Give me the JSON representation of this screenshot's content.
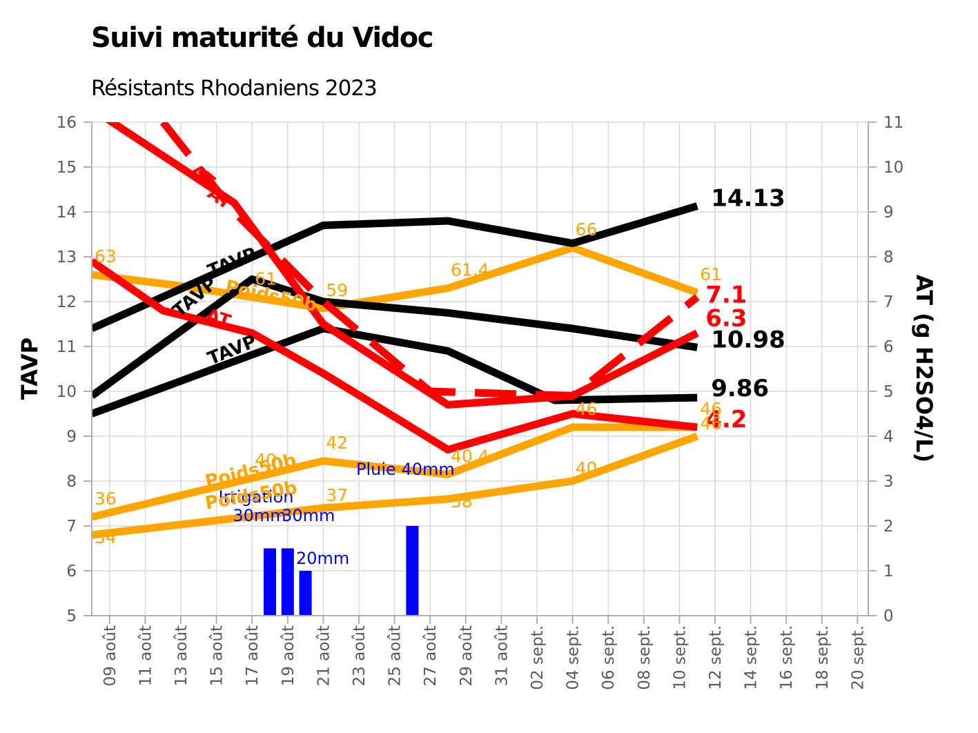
{
  "title": "Suivi maturité du Vidoc",
  "subtitle": "Résistants Rhodaniens 2023",
  "chart_data": {
    "type": "line",
    "xlabel": "",
    "ylabel_left": "TAVP",
    "ylabel_right": "AT (g H2SO4/L)",
    "ylim_left": [
      5,
      16
    ],
    "ylim_right": [
      0,
      11
    ],
    "grid": true,
    "x_ticks": [
      "09 août",
      "11 août",
      "13 août",
      "15 août",
      "17 août",
      "19 août",
      "21 août",
      "23 août",
      "25 août",
      "27 août",
      "29 août",
      "31 août",
      "02 sept.",
      "04 sept.",
      "06 sept.",
      "08 sept.",
      "10 sept.",
      "12 sept.",
      "14 sept.",
      "16 sept.",
      "18 sept.",
      "20 sept."
    ],
    "y_ticks_left": [
      "5",
      "6",
      "7",
      "8",
      "9",
      "10",
      "11",
      "12",
      "13",
      "14",
      "15",
      "16"
    ],
    "y_ticks_right": [
      "0",
      "1",
      "2",
      "3",
      "4",
      "5",
      "6",
      "7",
      "8",
      "9",
      "10",
      "11"
    ],
    "colors": {
      "tavp": "#000000",
      "at": "#ff0000",
      "poids": "#ffa500",
      "water": "#0000ff"
    },
    "series": [
      {
        "group": "tavp",
        "axis": "left",
        "points": [
          [
            "2023-08-08",
            11.4
          ],
          [
            "2023-08-21",
            13.7
          ],
          [
            "2023-08-28",
            13.8
          ],
          [
            "2023-09-04",
            13.3
          ],
          [
            "2023-09-11",
            14.13
          ]
        ],
        "end_label": "14.13",
        "inline_label": "TAVP"
      },
      {
        "group": "tavp",
        "axis": "left",
        "points": [
          [
            "2023-08-08",
            9.9
          ],
          [
            "2023-08-17",
            12.5
          ],
          [
            "2023-08-21",
            12.0
          ],
          [
            "2023-08-28",
            11.75
          ],
          [
            "2023-09-04",
            11.4
          ],
          [
            "2023-09-11",
            10.98
          ]
        ],
        "end_label": "10.98",
        "inline_label": "TAVP"
      },
      {
        "group": "tavp",
        "axis": "left",
        "points": [
          [
            "2023-08-08",
            9.5
          ],
          [
            "2023-08-21",
            11.4
          ],
          [
            "2023-08-28",
            10.9
          ],
          [
            "2023-09-03",
            9.8
          ],
          [
            "2023-09-11",
            9.86
          ]
        ],
        "end_label": "9.86",
        "inline_label": "TAVP"
      },
      {
        "group": "at",
        "axis": "right",
        "dashed": true,
        "points": [
          [
            "2023-08-12",
            11.0
          ],
          [
            "2023-08-16",
            9.0
          ],
          [
            "2023-08-21",
            7.0
          ],
          [
            "2023-08-27",
            5.0
          ],
          [
            "2023-09-04",
            4.9
          ],
          [
            "2023-09-11",
            7.1
          ]
        ],
        "end_label": "7.1",
        "inline_label": "AT"
      },
      {
        "group": "at",
        "axis": "right",
        "points": [
          [
            "2023-08-08",
            11.3
          ],
          [
            "2023-08-16",
            9.2
          ],
          [
            "2023-08-21",
            6.5
          ],
          [
            "2023-08-28",
            4.7
          ],
          [
            "2023-09-04",
            4.9
          ],
          [
            "2023-09-11",
            6.3
          ]
        ],
        "end_label": "6.3",
        "inline_label": "AT"
      },
      {
        "group": "at",
        "axis": "right",
        "points": [
          [
            "2023-08-08",
            7.9
          ],
          [
            "2023-08-12",
            6.8
          ],
          [
            "2023-08-17",
            6.3
          ],
          [
            "2023-08-21",
            5.4
          ],
          [
            "2023-08-28",
            3.7
          ],
          [
            "2023-09-04",
            4.5
          ],
          [
            "2023-09-11",
            4.2
          ]
        ],
        "end_label": "4.2",
        "inline_label": "AT"
      },
      {
        "group": "poids",
        "axis": "left",
        "points": [
          [
            "2023-08-08",
            12.6
          ],
          [
            "2023-08-13",
            12.35
          ],
          [
            "2023-08-21",
            11.85
          ],
          [
            "2023-08-28",
            12.3
          ],
          [
            "2023-09-04",
            13.2
          ],
          [
            "2023-09-11",
            12.2
          ]
        ],
        "point_labels": [
          [
            "2023-08-08",
            "63"
          ],
          [
            "2023-08-17",
            "61"
          ],
          [
            "2023-08-21",
            "59"
          ],
          [
            "2023-08-28",
            "61.4"
          ],
          [
            "2023-09-04",
            "66"
          ],
          [
            "2023-09-11",
            "61"
          ]
        ],
        "inline_label": "Poids50b"
      },
      {
        "group": "poids",
        "axis": "left",
        "points": [
          [
            "2023-08-08",
            7.2
          ],
          [
            "2023-08-21",
            8.45
          ],
          [
            "2023-08-28",
            8.15
          ],
          [
            "2023-09-04",
            9.2
          ],
          [
            "2023-09-11",
            9.2
          ]
        ],
        "point_labels": [
          [
            "2023-08-08",
            "36"
          ],
          [
            "2023-08-17",
            "40"
          ],
          [
            "2023-08-21",
            "42"
          ],
          [
            "2023-08-28",
            "40.4"
          ],
          [
            "2023-09-04",
            "46"
          ],
          [
            "2023-09-11",
            "46"
          ]
        ],
        "inline_label": "Poids50b"
      },
      {
        "group": "poids",
        "axis": "left",
        "points": [
          [
            "2023-08-08",
            6.8
          ],
          [
            "2023-08-21",
            7.4
          ],
          [
            "2023-08-28",
            7.6
          ],
          [
            "2023-09-04",
            8.0
          ],
          [
            "2023-09-11",
            9.0
          ]
        ],
        "point_labels": [
          [
            "2023-08-08",
            "34"
          ],
          [
            "2023-08-21",
            "37"
          ],
          [
            "2023-08-28",
            "38"
          ],
          [
            "2023-09-04",
            "40"
          ],
          [
            "2023-09-11",
            "46"
          ]
        ],
        "inline_label": "Poids50b"
      }
    ],
    "water_bars": [
      {
        "date": "2023-08-18",
        "value": 30,
        "label": "Irrigation"
      },
      {
        "date": "2023-08-19",
        "value": 30,
        "label": "30mm"
      },
      {
        "date": "2023-08-20",
        "value": 20,
        "label": "20mm"
      },
      {
        "date": "2023-08-26",
        "value": 40,
        "label": "Pluie 40mm"
      }
    ],
    "water_extra_labels": [
      {
        "date": "2023-08-18",
        "text": "30mm"
      }
    ]
  }
}
